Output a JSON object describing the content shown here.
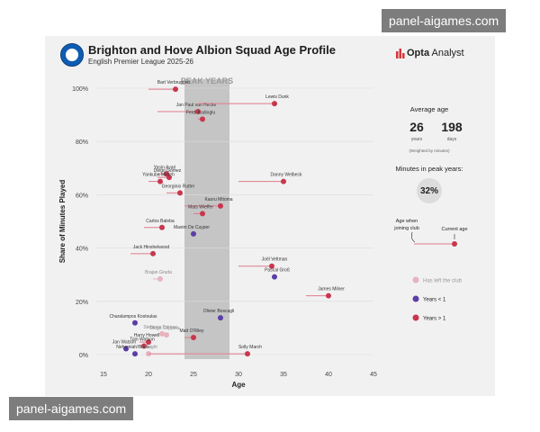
{
  "watermark": "panel-aigames.com",
  "header": {
    "title": "Brighton and Hove Albion Squad Age Profile",
    "subtitle": "English Premier League 2025-26",
    "brand_bold": "Opta",
    "brand_rest": " Analyst"
  },
  "colors": {
    "over_one": "#c8374d",
    "under_one": "#5b3ea6",
    "left_club": "#e7b3be",
    "peak": "#bdbdbd",
    "line": "#e07a8a"
  },
  "side": {
    "avg_title": "Average age",
    "avg_years": "26",
    "avg_years_label": "years",
    "avg_days": "198",
    "avg_days_label": "days",
    "avg_note": "(Weighted by minutes)",
    "peak_title": "Minutes in peak years:",
    "peak_value": "32%",
    "age_join_label": "Age when joining club",
    "current_age_label": "Current age",
    "legend": [
      {
        "label": "Has left the club",
        "kind": "left_club"
      },
      {
        "label": "Years < 1",
        "kind": "under_one"
      },
      {
        "label": "Years > 1",
        "kind": "over_one"
      }
    ]
  },
  "chart_data": {
    "type": "scatter",
    "title": "Brighton and Hove Albion Squad Age Profile",
    "xlabel": "Age",
    "ylabel": "Share of Minutes Played",
    "xlim": [
      15,
      45
    ],
    "ylim": [
      0,
      100
    ],
    "xticks": [
      15,
      20,
      25,
      30,
      35,
      40,
      45
    ],
    "yticks": [
      0,
      20,
      40,
      60,
      80,
      100
    ],
    "ytick_labels": [
      "0%",
      "20%",
      "40%",
      "60%",
      "80%",
      "100%"
    ],
    "peak_band": {
      "label": "PEAK YEARS",
      "from": 24,
      "to": 29
    },
    "points": [
      {
        "name": "Bart Verbruggen",
        "age": 23,
        "join_age": 20,
        "share": 99.6,
        "status": "over_one"
      },
      {
        "name": "Jan Paul van Hecke",
        "age": 25.5,
        "join_age": 21,
        "share": 91.2,
        "status": "over_one"
      },
      {
        "name": "Lewis Dunk",
        "age": 34,
        "join_age": 25.5,
        "share": 94.2,
        "status": "over_one"
      },
      {
        "name": "Ferdi Kadioglu",
        "age": 26,
        "join_age": 25.5,
        "share": 88.4,
        "status": "over_one"
      },
      {
        "name": "Yasin Ayari",
        "age": 22,
        "join_age": 21,
        "share": 67.8,
        "status": "over_one"
      },
      {
        "name": "Diego Gómez",
        "age": 22.3,
        "join_age": 21,
        "share": 66.5,
        "status": "over_one"
      },
      {
        "name": "Yankuba Minteh",
        "age": 21.3,
        "join_age": 20,
        "share": 65.0,
        "status": "over_one"
      },
      {
        "name": "Danny Welbeck",
        "age": 35,
        "join_age": 30,
        "share": 65.0,
        "status": "over_one"
      },
      {
        "name": "Georginio Rutter",
        "age": 23.5,
        "join_age": 22,
        "share": 60.7,
        "status": "over_one"
      },
      {
        "name": "Kaoru Mitoma",
        "age": 28,
        "join_age": 24,
        "share": 55.8,
        "status": "over_one"
      },
      {
        "name": "Mats Wieffer",
        "age": 26,
        "join_age": 25,
        "share": 52.9,
        "status": "over_one"
      },
      {
        "name": "Carlos Baleba",
        "age": 21.5,
        "join_age": 19.5,
        "share": 47.7,
        "status": "over_one"
      },
      {
        "name": "Maxim De Cuyper",
        "age": 25,
        "join_age": 25,
        "share": 45.3,
        "status": "under_one"
      },
      {
        "name": "Jack Hinshelwood",
        "age": 20.5,
        "join_age": 18,
        "share": 37.9,
        "status": "over_one"
      },
      {
        "name": "Joël Veltman",
        "age": 33.7,
        "join_age": 30,
        "share": 33.2,
        "status": "over_one"
      },
      {
        "name": "Brajan Gruda",
        "age": 21.3,
        "join_age": 20.5,
        "share": 28.4,
        "status": "left_club"
      },
      {
        "name": "Pascal Groß",
        "age": 34,
        "join_age": 34,
        "share": 29.2,
        "status": "under_one"
      },
      {
        "name": "James Milner",
        "age": 40,
        "join_age": 37.5,
        "share": 22.1,
        "status": "over_one"
      },
      {
        "name": "Olivier Boscagli",
        "age": 28,
        "join_age": 28,
        "share": 13.8,
        "status": "under_one"
      },
      {
        "name": "Charalampos Kostoulas",
        "age": 18.5,
        "join_age": 18.5,
        "share": 11.9,
        "status": "under_one"
      },
      {
        "name": "Stefanos Tzimas",
        "age": 21.5,
        "join_age": 21.5,
        "share": 7.8,
        "status": "left_club"
      },
      {
        "name": "Diego Coppola",
        "age": 22,
        "join_age": 22,
        "share": 7.4,
        "status": "left_club"
      },
      {
        "name": "Matt O'Riley",
        "age": 25,
        "join_age": 24,
        "share": 6.4,
        "status": "over_one"
      },
      {
        "name": "Harry Howell",
        "age": 20,
        "join_age": 19,
        "share": 4.7,
        "status": "over_one"
      },
      {
        "name": "Tom Watson",
        "age": 19.5,
        "join_age": 19,
        "share": 3.2,
        "status": "over_one"
      },
      {
        "name": "Jan Watson",
        "age": 17.5,
        "join_age": 17.5,
        "share": 2.2,
        "status": "under_one"
      },
      {
        "name": "Nehemiah Oriola",
        "age": 18.5,
        "join_age": 18.5,
        "share": 0.3,
        "status": "under_one"
      },
      {
        "name": "Joe Knight",
        "age": 20,
        "join_age": 20,
        "share": 0.3,
        "status": "left_club"
      },
      {
        "name": "Solly March",
        "age": 31,
        "join_age": 20,
        "share": 0.3,
        "status": "over_one"
      }
    ]
  }
}
